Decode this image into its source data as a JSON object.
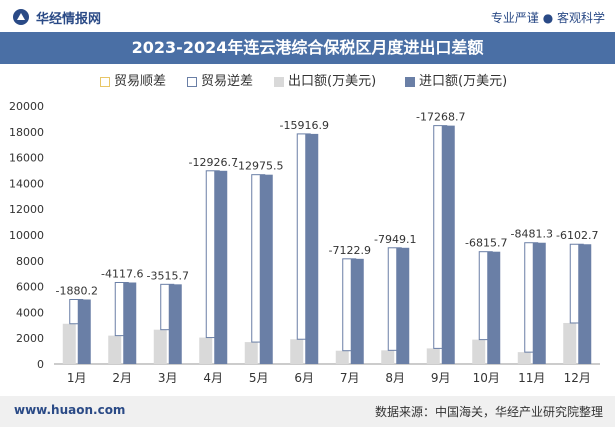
{
  "header": {
    "site_name": "华经情报网",
    "slogan": "专业严谨 ● 客观科学"
  },
  "title": "2023-2024年连云港综合保税区月度进出口差额",
  "legend": {
    "surplus": "贸易顺差",
    "deficit": "贸易逆差",
    "export": "出口额(万美元)",
    "import": "进口额(万美元)"
  },
  "footer": {
    "url": "www.huaon.com",
    "source": "数据来源：中国海关，华经产业研究院整理"
  },
  "colors": {
    "title_bar": "#4a6fa5",
    "export_bar": "#d9d9d9",
    "import_bar": "#6a7fa6",
    "deficit_border": "#6a7fa6",
    "surplus_border": "#e8c667",
    "brand": "#2a4a86"
  },
  "chart_data": {
    "type": "bar",
    "categories": [
      "1月",
      "2月",
      "3月",
      "4月",
      "5月",
      "6月",
      "7月",
      "8月",
      "9月",
      "10月",
      "11月",
      "12月"
    ],
    "series": [
      {
        "name": "出口额(万美元)",
        "values": [
          3120,
          2200,
          2660,
          2050,
          1700,
          1920,
          1030,
          1060,
          1210,
          1890,
          920,
          3180
        ]
      },
      {
        "name": "进口额(万美元)",
        "values": [
          5000,
          6318,
          6176,
          14977,
          14676,
          17837,
          8153,
          9009,
          18479,
          8706,
          9401,
          9283
        ]
      },
      {
        "name": "贸易逆差",
        "values": [
          -1880.2,
          -4117.6,
          -3515.7,
          -12926.7,
          -12975.5,
          -15916.9,
          -7122.9,
          -7949.1,
          -17268.7,
          -6815.7,
          -8481.3,
          -6102.7
        ]
      }
    ],
    "balance_labels": [
      "-1880.2",
      "-4117.6",
      "-3515.7",
      "-12926.7",
      "-12975.5",
      "-15916.9",
      "-7122.9",
      "-7949.1",
      "-17268.7",
      "-6815.7",
      "-8481.3",
      "-6102.7"
    ],
    "yticks": [
      "0",
      "2000",
      "4000",
      "6000",
      "8000",
      "10000",
      "12000",
      "14000",
      "16000",
      "18000",
      "20000"
    ],
    "ylim": [
      0,
      20000
    ],
    "grid": false,
    "legend_position": "top"
  }
}
